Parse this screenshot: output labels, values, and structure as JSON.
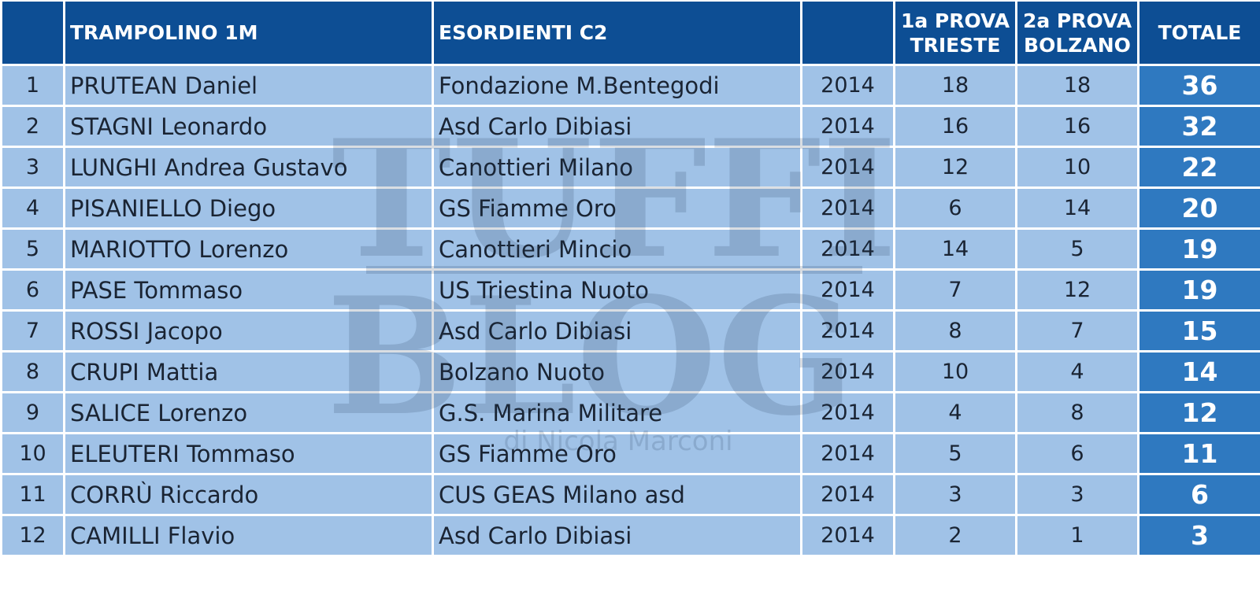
{
  "header": {
    "pos": "",
    "name": "TRAMPOLINO 1M",
    "club": "ESORDIENTI C2",
    "year": "",
    "p1_line1": "1a PROVA",
    "p1_line2": "TRIESTE",
    "p2_line1": "2a PROVA",
    "p2_line2": "BOLZANO",
    "total": "TOTALE"
  },
  "rows": [
    {
      "pos": "1",
      "name": "PRUTEAN Daniel",
      "club": "Fondazione M.Bentegodi",
      "year": "2014",
      "p1": "18",
      "p2": "18",
      "total": "36"
    },
    {
      "pos": "2",
      "name": "STAGNI Leonardo",
      "club": "Asd Carlo Dibiasi",
      "year": "2014",
      "p1": "16",
      "p2": "16",
      "total": "32"
    },
    {
      "pos": "3",
      "name": "LUNGHI Andrea Gustavo",
      "club": "Canottieri Milano",
      "year": "2014",
      "p1": "12",
      "p2": "10",
      "total": "22"
    },
    {
      "pos": "4",
      "name": "PISANIELLO Diego",
      "club": "GS Fiamme Oro",
      "year": "2014",
      "p1": "6",
      "p2": "14",
      "total": "20"
    },
    {
      "pos": "5",
      "name": "MARIOTTO Lorenzo",
      "club": "Canottieri Mincio",
      "year": "2014",
      "p1": "14",
      "p2": "5",
      "total": "19"
    },
    {
      "pos": "6",
      "name": "PASE Tommaso",
      "club": "US Triestina Nuoto",
      "year": "2014",
      "p1": "7",
      "p2": "12",
      "total": "19"
    },
    {
      "pos": "7",
      "name": "ROSSI Jacopo",
      "club": "Asd Carlo Dibiasi",
      "year": "2014",
      "p1": "8",
      "p2": "7",
      "total": "15"
    },
    {
      "pos": "8",
      "name": "CRUPI Mattia",
      "club": "Bolzano Nuoto",
      "year": "2014",
      "p1": "10",
      "p2": "4",
      "total": "14"
    },
    {
      "pos": "9",
      "name": "SALICE Lorenzo",
      "club": "G.S. Marina Militare",
      "year": "2014",
      "p1": "4",
      "p2": "8",
      "total": "12"
    },
    {
      "pos": "10",
      "name": "ELEUTERI Tommaso",
      "club": "GS Fiamme Oro",
      "year": "2014",
      "p1": "5",
      "p2": "6",
      "total": "11"
    },
    {
      "pos": "11",
      "name": "CORRÙ Riccardo",
      "club": "CUS GEAS Milano asd",
      "year": "2014",
      "p1": "3",
      "p2": "3",
      "total": "6"
    },
    {
      "pos": "12",
      "name": "CAMILLI Flavio",
      "club": "Asd Carlo Dibiasi",
      "year": "2014",
      "p1": "2",
      "p2": "1",
      "total": "3"
    }
  ],
  "watermark": {
    "line1": "TUFFI",
    "line2": "BLOG",
    "byline": "di Nicola Marconi"
  },
  "colors": {
    "header_bg": "#0d4e94",
    "row_bg": "#a0c2e7",
    "total_bg": "#2f79c0"
  }
}
